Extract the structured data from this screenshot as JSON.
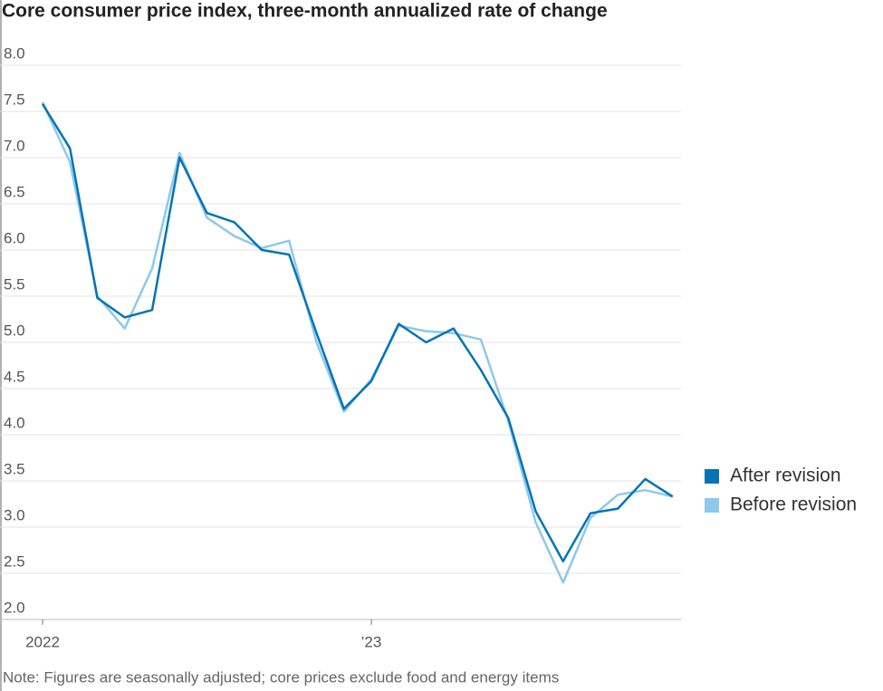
{
  "chart_data": {
    "type": "line",
    "title": "Core consumer price index, three-month annualized rate of change",
    "note": "Note: Figures are seasonally adjusted; core prices exclude food and energy items",
    "categories": [
      "2022",
      null,
      null,
      null,
      null,
      null,
      null,
      null,
      null,
      null,
      null,
      null,
      "’23",
      null,
      null,
      null,
      null,
      null,
      null,
      null,
      null,
      null,
      null,
      null
    ],
    "series": [
      {
        "name": "After revision",
        "color": "#0274b6",
        "values": [
          7.58,
          7.1,
          5.48,
          5.27,
          5.35,
          7.0,
          6.4,
          6.3,
          6.0,
          5.95,
          5.1,
          4.28,
          4.58,
          5.2,
          5.0,
          5.15,
          4.7,
          4.18,
          3.17,
          2.63,
          3.15,
          3.2,
          3.52,
          3.33
        ]
      },
      {
        "name": "Before revision",
        "color": "#8ec8ec",
        "values": [
          7.6,
          6.95,
          5.5,
          5.15,
          5.8,
          7.05,
          6.35,
          6.15,
          6.02,
          6.1,
          5.0,
          4.25,
          4.6,
          5.18,
          5.12,
          5.1,
          5.03,
          4.15,
          3.05,
          2.4,
          3.1,
          3.35,
          3.4,
          3.33
        ]
      }
    ],
    "ylim": [
      2,
      8
    ],
    "yticks": [
      {
        "value": 2,
        "label": "2.0"
      },
      2.5,
      {
        "value": 3,
        "label": "3.0"
      },
      3.5,
      {
        "value": 4,
        "label": "4.0"
      },
      4.5,
      {
        "value": 5,
        "label": "5.0"
      },
      5.5,
      {
        "value": 6,
        "label": "6.0"
      },
      6.5,
      {
        "value": 7,
        "label": "7.0"
      },
      7.5,
      {
        "value": 8,
        "label": "8.0"
      }
    ],
    "grid": true,
    "legend": "right"
  }
}
